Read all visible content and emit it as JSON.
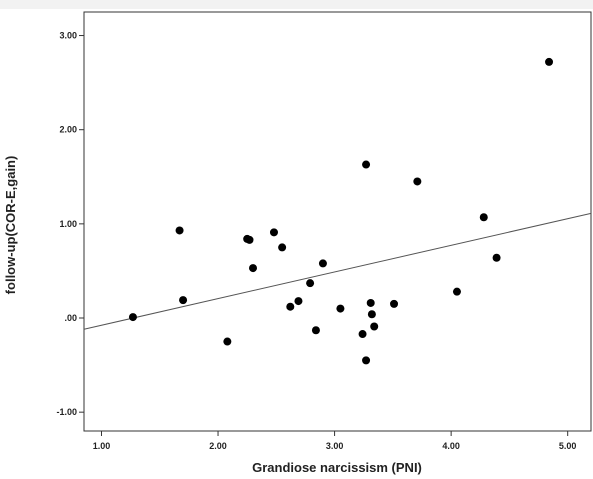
{
  "chart_data": {
    "type": "scatter",
    "title": "",
    "xlabel": "Grandiose narcissism (PNI)",
    "ylabel": "follow-up(COR-E,gain)",
    "xlim": [
      0.85,
      5.2
    ],
    "ylim": [
      -1.2,
      3.25
    ],
    "x_ticks": [
      1.0,
      2.0,
      3.0,
      4.0,
      5.0
    ],
    "x_tick_labels": [
      "1.00",
      "2.00",
      "3.00",
      "4.00",
      "5.00"
    ],
    "y_ticks": [
      3.0,
      2.0,
      1.0,
      0.0,
      -1.0
    ],
    "y_tick_labels": [
      "3.00",
      "2.00",
      "1.00",
      ".00",
      "-1.00"
    ],
    "grid": false,
    "point_color": "#000000",
    "line_color": "#555555",
    "points": [
      {
        "x": 1.27,
        "y": 0.01
      },
      {
        "x": 1.67,
        "y": 0.93
      },
      {
        "x": 1.7,
        "y": 0.19
      },
      {
        "x": 2.08,
        "y": -0.25
      },
      {
        "x": 2.25,
        "y": 0.84
      },
      {
        "x": 2.27,
        "y": 0.83
      },
      {
        "x": 2.3,
        "y": 0.53
      },
      {
        "x": 2.48,
        "y": 0.91
      },
      {
        "x": 2.55,
        "y": 0.75
      },
      {
        "x": 2.62,
        "y": 0.12
      },
      {
        "x": 2.69,
        "y": 0.18
      },
      {
        "x": 2.79,
        "y": 0.37
      },
      {
        "x": 2.84,
        "y": -0.13
      },
      {
        "x": 2.9,
        "y": 0.58
      },
      {
        "x": 3.05,
        "y": 0.1
      },
      {
        "x": 3.24,
        "y": -0.17
      },
      {
        "x": 3.27,
        "y": 1.63
      },
      {
        "x": 3.27,
        "y": -0.45
      },
      {
        "x": 3.31,
        "y": 0.16
      },
      {
        "x": 3.32,
        "y": 0.04
      },
      {
        "x": 3.34,
        "y": -0.09
      },
      {
        "x": 3.51,
        "y": 0.15
      },
      {
        "x": 3.71,
        "y": 1.45
      },
      {
        "x": 4.05,
        "y": 0.28
      },
      {
        "x": 4.28,
        "y": 1.07
      },
      {
        "x": 4.39,
        "y": 0.64
      },
      {
        "x": 4.84,
        "y": 2.72
      }
    ],
    "fit_line": {
      "slope": 0.283,
      "intercept": -0.36
    }
  }
}
